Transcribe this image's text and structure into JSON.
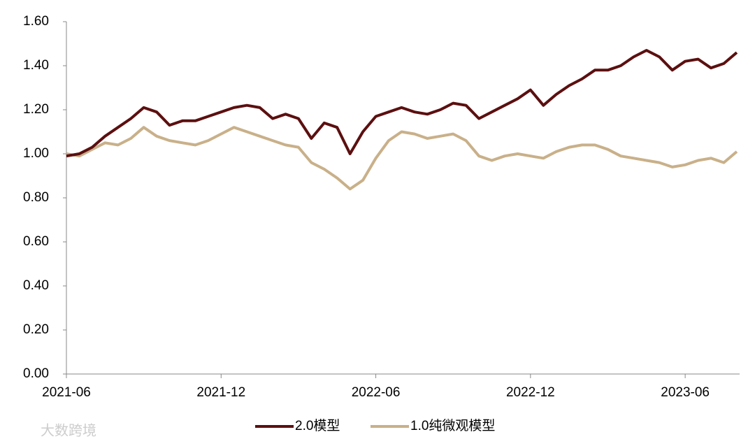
{
  "chart_data": {
    "type": "line",
    "categories": [
      "2021-06",
      null,
      null,
      null,
      null,
      null,
      null,
      null,
      null,
      null,
      null,
      null,
      "2021-12",
      null,
      null,
      null,
      null,
      null,
      null,
      null,
      null,
      null,
      null,
      null,
      "2022-06",
      null,
      null,
      null,
      null,
      null,
      null,
      null,
      null,
      null,
      null,
      null,
      "2022-12",
      null,
      null,
      null,
      null,
      null,
      null,
      null,
      null,
      null,
      null,
      null,
      "2023-06",
      null,
      null,
      null,
      null
    ],
    "series": [
      {
        "name": "2.0模型",
        "color": "#5c0f0f",
        "values": [
          0.99,
          1.0,
          1.03,
          1.08,
          1.12,
          1.16,
          1.21,
          1.19,
          1.13,
          1.15,
          1.15,
          1.17,
          1.19,
          1.21,
          1.22,
          1.21,
          1.16,
          1.18,
          1.16,
          1.07,
          1.14,
          1.12,
          1.0,
          1.1,
          1.17,
          1.19,
          1.21,
          1.19,
          1.18,
          1.2,
          1.23,
          1.22,
          1.16,
          1.19,
          1.22,
          1.25,
          1.29,
          1.22,
          1.27,
          1.31,
          1.34,
          1.38,
          1.38,
          1.4,
          1.44,
          1.47,
          1.44,
          1.38,
          1.42,
          1.43,
          1.39,
          1.41,
          1.46
        ]
      },
      {
        "name": "1.0纯微观模型",
        "color": "#c9b089",
        "values": [
          1.0,
          0.99,
          1.02,
          1.05,
          1.04,
          1.07,
          1.12,
          1.08,
          1.06,
          1.05,
          1.04,
          1.06,
          1.09,
          1.12,
          1.1,
          1.08,
          1.06,
          1.04,
          1.03,
          0.96,
          0.93,
          0.89,
          0.84,
          0.88,
          0.98,
          1.06,
          1.1,
          1.09,
          1.07,
          1.08,
          1.09,
          1.06,
          0.99,
          0.97,
          0.99,
          1.0,
          0.99,
          0.98,
          1.01,
          1.03,
          1.04,
          1.04,
          1.02,
          0.99,
          0.98,
          0.97,
          0.96,
          0.94,
          0.95,
          0.97,
          0.98,
          0.96,
          1.01
        ]
      }
    ],
    "ylim": [
      0,
      1.6
    ],
    "yticks": [
      {
        "value": 0,
        "label": "0.00"
      },
      {
        "value": 0.2,
        "label": "0.20"
      },
      {
        "value": 0.4,
        "label": "0.40"
      },
      {
        "value": 0.6,
        "label": "0.60"
      },
      {
        "value": 0.8,
        "label": "0.80"
      },
      {
        "value": 1.0,
        "label": "1.00"
      },
      {
        "value": 1.2,
        "label": "1.20"
      },
      {
        "value": 1.4,
        "label": "1.40"
      },
      {
        "value": 1.6,
        "label": "1.60"
      }
    ],
    "grid": false,
    "legend": "bottom"
  },
  "watermark": "大数跨境"
}
